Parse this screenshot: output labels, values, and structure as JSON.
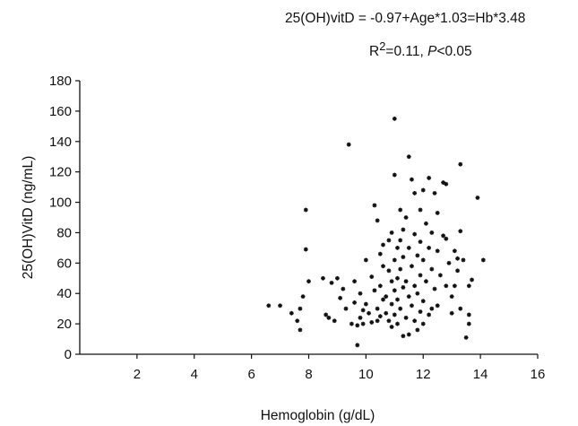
{
  "equation": "25(OH)vitD = -0.97+Age*1.03=Hb*3.48",
  "stats": {
    "r2_label": "R",
    "r2_sup": "2",
    "r2_value": "=0.11,",
    "p_letter": "P",
    "p_value": "<0.05"
  },
  "colors": {
    "axis": "#111111",
    "marker": "#111111"
  },
  "chart_data": {
    "type": "scatter",
    "xlabel": "Hemoglobin (g/dL)",
    "ylabel": "25(OH)VitD (ng/mL)",
    "xlim": [
      0,
      16
    ],
    "ylim": [
      0,
      180
    ],
    "xticks": [
      2,
      4,
      6,
      8,
      10,
      12,
      14,
      16
    ],
    "yticks": [
      0,
      20,
      40,
      60,
      80,
      100,
      120,
      140,
      160,
      180
    ],
    "grid": false,
    "points": [
      [
        6.6,
        32
      ],
      [
        7.0,
        32
      ],
      [
        7.6,
        22
      ],
      [
        7.7,
        30
      ],
      [
        7.8,
        38
      ],
      [
        7.7,
        16
      ],
      [
        7.9,
        95
      ],
      [
        7.9,
        69
      ],
      [
        8.0,
        48
      ],
      [
        7.4,
        27
      ],
      [
        8.5,
        50
      ],
      [
        8.6,
        26
      ],
      [
        8.7,
        24
      ],
      [
        8.8,
        47
      ],
      [
        8.9,
        22
      ],
      [
        9.1,
        37
      ],
      [
        9.0,
        50
      ],
      [
        9.2,
        43
      ],
      [
        9.3,
        30
      ],
      [
        9.4,
        138
      ],
      [
        9.5,
        20
      ],
      [
        9.6,
        48
      ],
      [
        9.6,
        34
      ],
      [
        9.7,
        19
      ],
      [
        9.7,
        6
      ],
      [
        9.8,
        40
      ],
      [
        9.8,
        24
      ],
      [
        9.9,
        29
      ],
      [
        9.9,
        20
      ],
      [
        10.0,
        62
      ],
      [
        10.0,
        33
      ],
      [
        10.1,
        27
      ],
      [
        10.2,
        51
      ],
      [
        10.2,
        21
      ],
      [
        10.3,
        98
      ],
      [
        10.3,
        42
      ],
      [
        10.4,
        22
      ],
      [
        10.4,
        30
      ],
      [
        10.5,
        66
      ],
      [
        10.5,
        45
      ],
      [
        10.5,
        25
      ],
      [
        10.6,
        72
      ],
      [
        10.6,
        58
      ],
      [
        10.6,
        36
      ],
      [
        10.7,
        38
      ],
      [
        10.7,
        27
      ],
      [
        10.8,
        75
      ],
      [
        10.8,
        55
      ],
      [
        10.8,
        22
      ],
      [
        10.9,
        80
      ],
      [
        10.9,
        48
      ],
      [
        10.9,
        33
      ],
      [
        11.0,
        155
      ],
      [
        11.0,
        118
      ],
      [
        11.0,
        62
      ],
      [
        11.0,
        42
      ],
      [
        11.0,
        26
      ],
      [
        11.1,
        70
      ],
      [
        11.1,
        50
      ],
      [
        11.1,
        36
      ],
      [
        11.1,
        20
      ],
      [
        11.2,
        95
      ],
      [
        11.2,
        56
      ],
      [
        11.2,
        30
      ],
      [
        11.3,
        82
      ],
      [
        11.3,
        64
      ],
      [
        11.3,
        44
      ],
      [
        11.3,
        12
      ],
      [
        11.4,
        90
      ],
      [
        11.4,
        48
      ],
      [
        11.4,
        24
      ],
      [
        11.5,
        130
      ],
      [
        11.5,
        70
      ],
      [
        11.5,
        38
      ],
      [
        11.5,
        13
      ],
      [
        11.6,
        58
      ],
      [
        11.6,
        32
      ],
      [
        11.7,
        106
      ],
      [
        11.7,
        79
      ],
      [
        11.7,
        45
      ],
      [
        11.7,
        22
      ],
      [
        11.8,
        65
      ],
      [
        11.8,
        40
      ],
      [
        11.8,
        16
      ],
      [
        11.9,
        95
      ],
      [
        11.9,
        74
      ],
      [
        11.9,
        52
      ],
      [
        11.9,
        28
      ],
      [
        12.0,
        108
      ],
      [
        12.0,
        62
      ],
      [
        12.0,
        35
      ],
      [
        12.1,
        86
      ],
      [
        12.1,
        48
      ],
      [
        12.2,
        116
      ],
      [
        12.2,
        70
      ],
      [
        12.2,
        26
      ],
      [
        12.3,
        80
      ],
      [
        12.3,
        56
      ],
      [
        12.4,
        106
      ],
      [
        12.4,
        43
      ],
      [
        12.5,
        93
      ],
      [
        12.5,
        68
      ],
      [
        12.5,
        32
      ],
      [
        12.6,
        52
      ],
      [
        12.7,
        113
      ],
      [
        12.7,
        78
      ],
      [
        12.8,
        112
      ],
      [
        12.8,
        45
      ],
      [
        12.9,
        60
      ],
      [
        13.0,
        38
      ],
      [
        13.0,
        27
      ],
      [
        13.1,
        68
      ],
      [
        13.1,
        45
      ],
      [
        13.2,
        55
      ],
      [
        13.3,
        81
      ],
      [
        13.3,
        30
      ],
      [
        13.3,
        125
      ],
      [
        13.4,
        62
      ],
      [
        13.5,
        11
      ],
      [
        13.6,
        26
      ],
      [
        13.6,
        20
      ],
      [
        13.7,
        49
      ],
      [
        13.9,
        103
      ],
      [
        14.1,
        62
      ],
      [
        12.8,
        76
      ],
      [
        11.6,
        115
      ],
      [
        10.9,
        18
      ],
      [
        12.3,
        30
      ],
      [
        13.2,
        63
      ],
      [
        10.4,
        88
      ],
      [
        11.2,
        75
      ],
      [
        12.0,
        20
      ],
      [
        13.6,
        45
      ]
    ]
  }
}
